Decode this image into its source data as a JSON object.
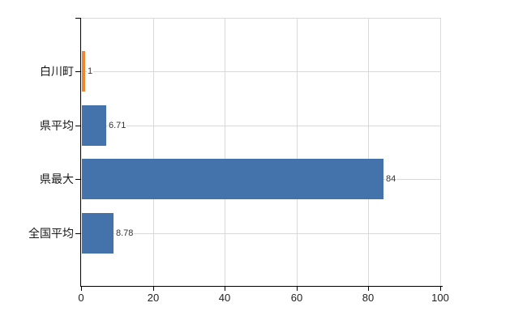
{
  "chart_data": {
    "type": "bar",
    "orientation": "horizontal",
    "title": "",
    "xlabel": "",
    "ylabel": "",
    "categories": [
      "白川町",
      "県平均",
      "県最大",
      "全国平均"
    ],
    "values": [
      1,
      6.71,
      84,
      8.78
    ],
    "value_labels": [
      "1",
      "6.71",
      "84",
      "8.78"
    ],
    "bar_colors": [
      "#ee8633",
      "#4373aa",
      "#4373aa",
      "#4373aa"
    ],
    "xlim": [
      0,
      100
    ],
    "x_ticks": [
      0,
      20,
      40,
      60,
      80,
      100
    ],
    "grid": true,
    "legend": false,
    "colors": {
      "axis": "#000000",
      "grid": "#d9d9d9",
      "category_label": "#1a1a1a",
      "tick_label": "#222222",
      "value_label": "#333333",
      "background": "#ffffff"
    }
  }
}
